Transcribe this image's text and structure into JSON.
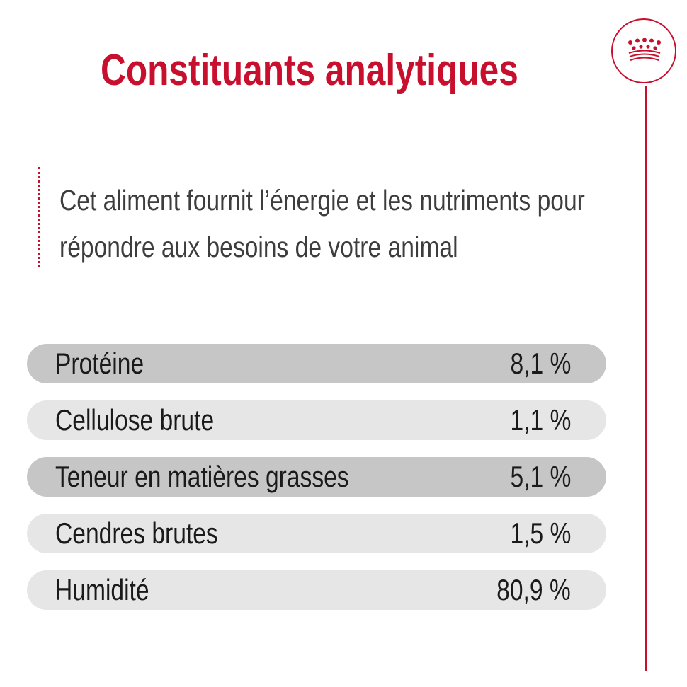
{
  "title": "Constituants analytiques",
  "intro": "Cet aliment fournit l’énergie et les nutriments pour répondre aux besoins de votre animal",
  "brand": {
    "icon": "crown-icon",
    "accent_color": "#c8102e"
  },
  "nutrients": [
    {
      "name": "Protéine",
      "value": "8,1 %"
    },
    {
      "name": "Cellulose brute",
      "value": "1,1 %"
    },
    {
      "name": "Teneur en matières grasses",
      "value": "5,1 %"
    },
    {
      "name": "Cendres brutes",
      "value": "1,5 %"
    },
    {
      "name": "Humidité",
      "value": "80,9 %"
    }
  ]
}
